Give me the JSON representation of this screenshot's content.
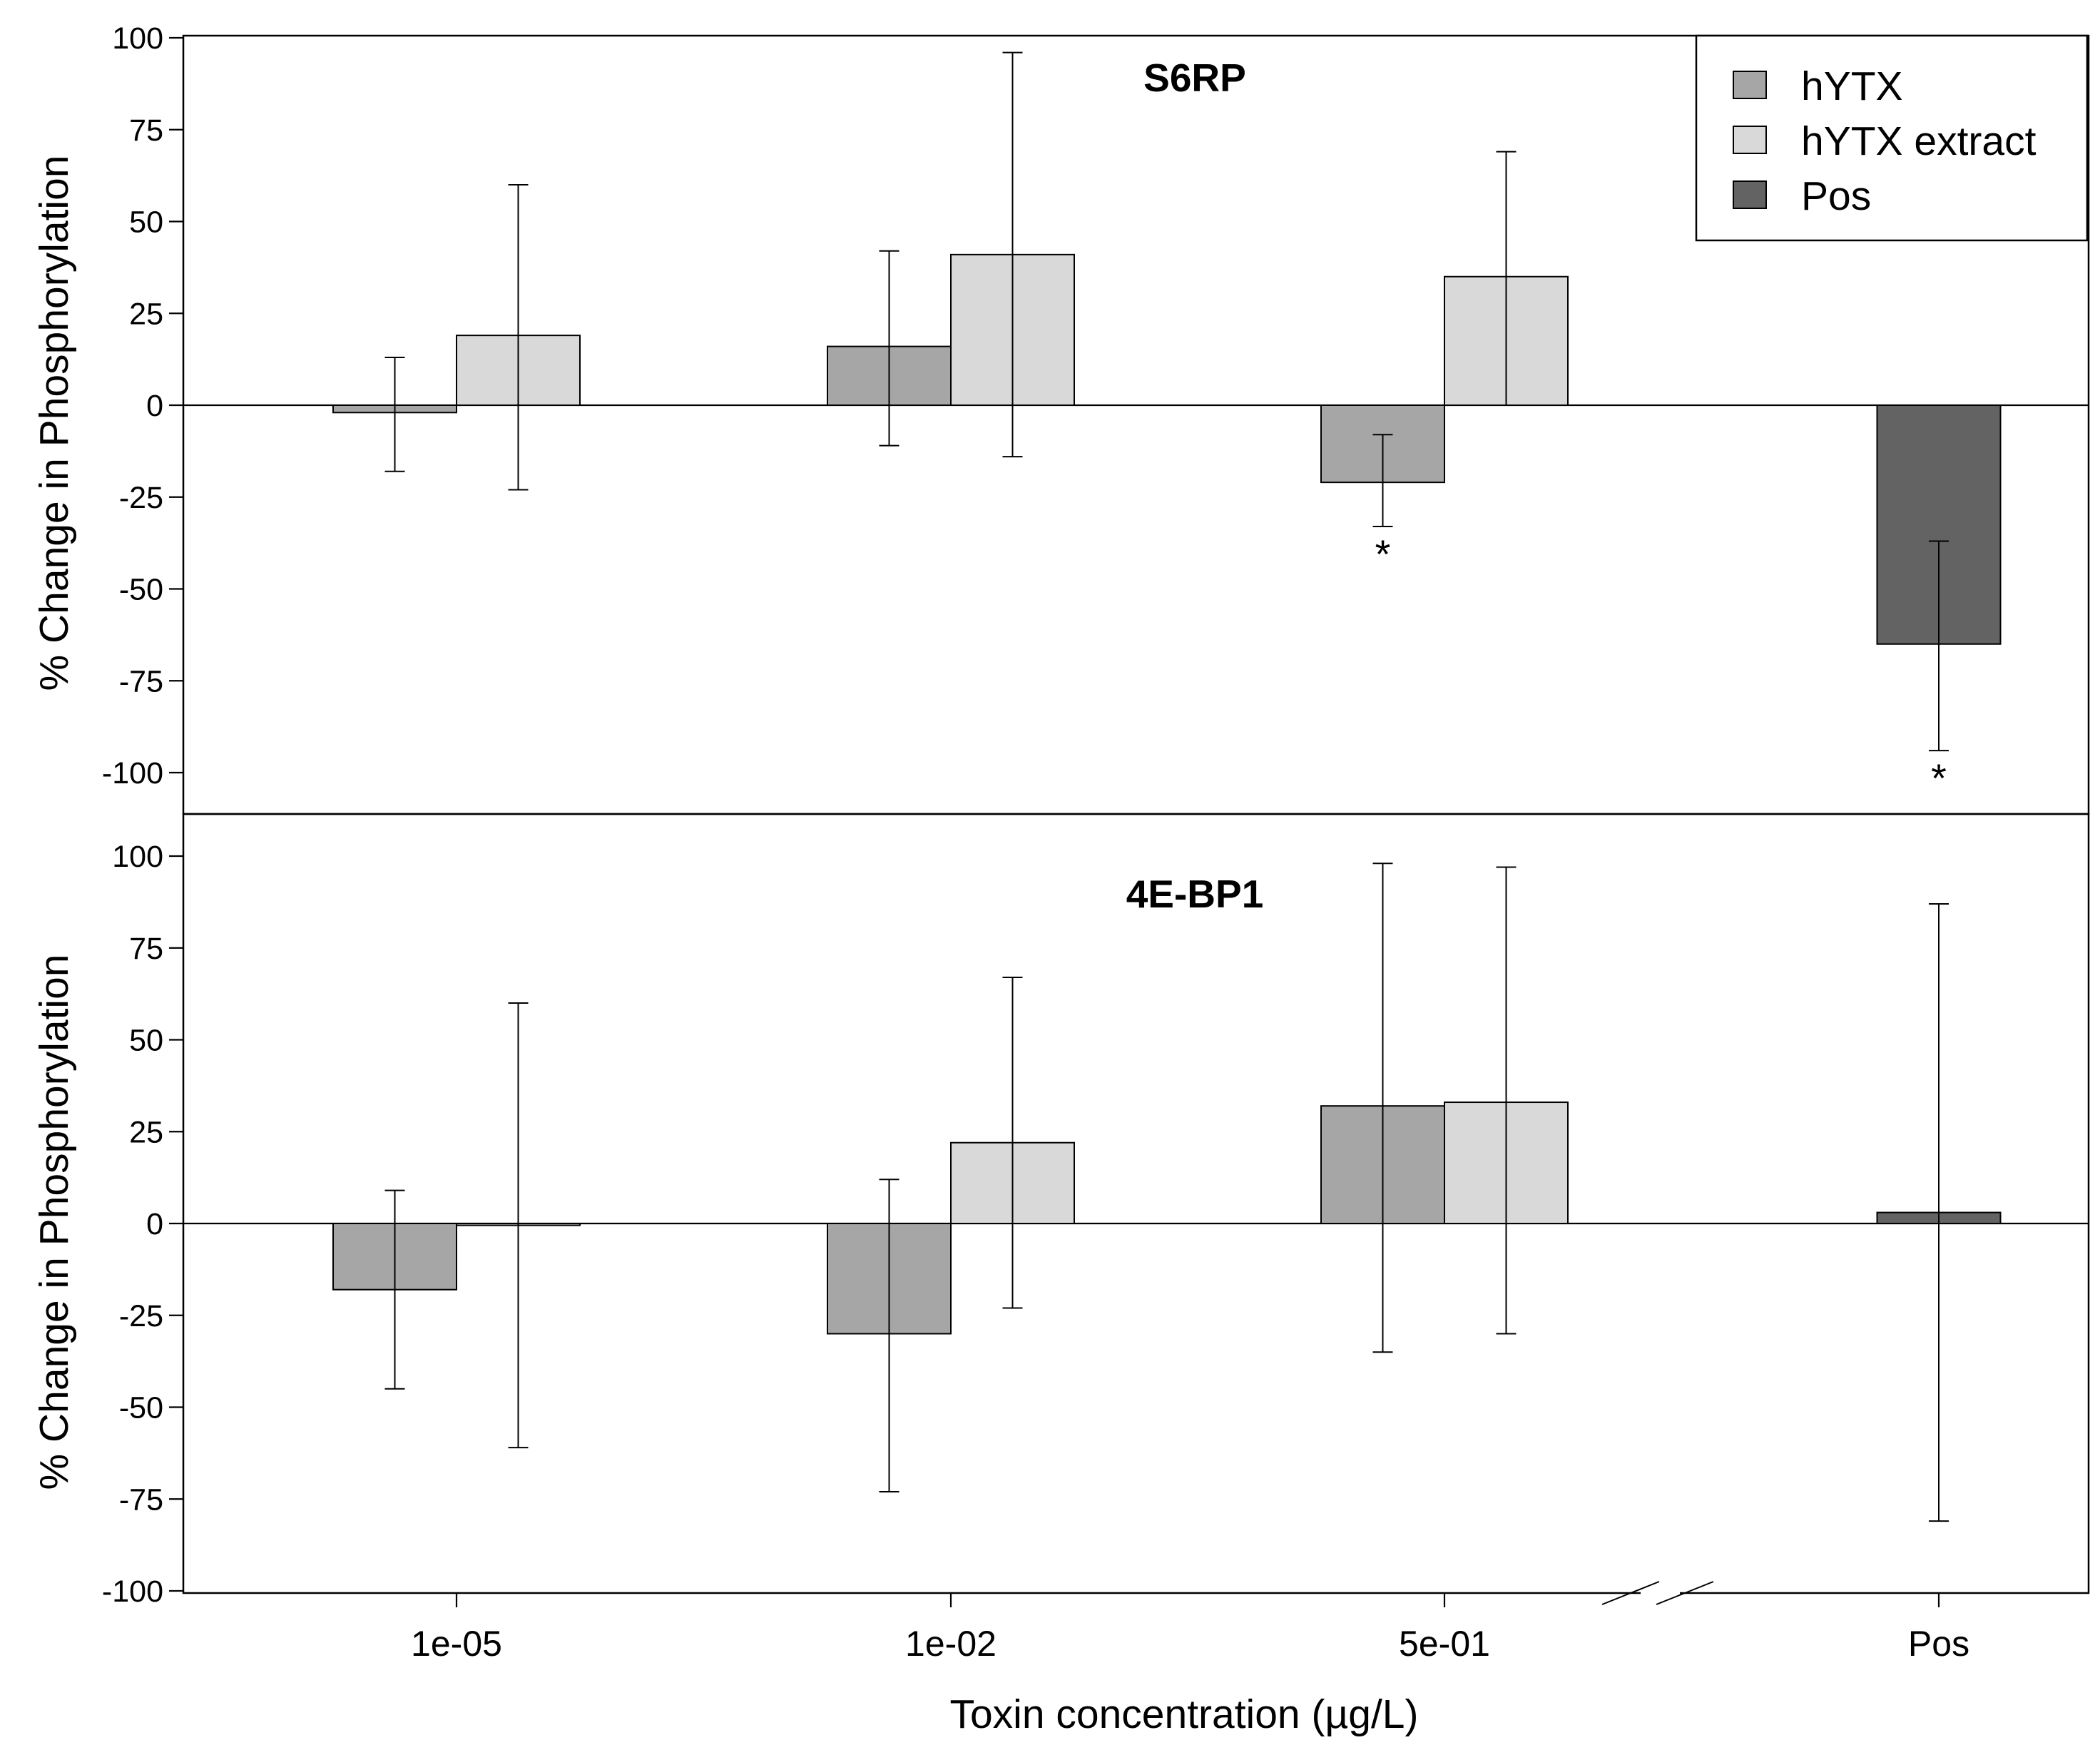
{
  "chart_data": {
    "type": "bar",
    "xlabel": "Toxin concentration (µg/L)",
    "ylabel": "% Change in Phosphorylation",
    "categories": [
      "1e-05",
      "1e-02",
      "5e-01",
      "Pos"
    ],
    "ylim": [
      -110,
      100
    ],
    "yticks": [
      100,
      75,
      50,
      25,
      0,
      -25,
      -50,
      -75,
      -100
    ],
    "legend": {
      "placement": "top-right",
      "entries": [
        {
          "label": "hYTX",
          "color": "#a6a6a6"
        },
        {
          "label": "hYTX extract",
          "color": "#d9d9d9"
        },
        {
          "label": "Pos",
          "color": "#636363"
        }
      ]
    },
    "series_colors": {
      "hYTX": "#a6a6a6",
      "hYTX extract": "#d9d9d9",
      "Pos": "#636363"
    },
    "axis_break": true,
    "panels": [
      {
        "title": "S6RP",
        "bars": [
          {
            "category": "1e-05",
            "series": "hYTX",
            "value": -2,
            "err_low": -18,
            "err_high": 13,
            "sig": ""
          },
          {
            "category": "1e-05",
            "series": "hYTX extract",
            "value": 19,
            "err_low": -23,
            "err_high": 60,
            "sig": ""
          },
          {
            "category": "1e-02",
            "series": "hYTX",
            "value": 16,
            "err_low": -11,
            "err_high": 42,
            "sig": ""
          },
          {
            "category": "1e-02",
            "series": "hYTX extract",
            "value": 41,
            "err_low": -14,
            "err_high": 96,
            "sig": ""
          },
          {
            "category": "5e-01",
            "series": "hYTX",
            "value": -21,
            "err_low": -33,
            "err_high": -8,
            "sig": "*"
          },
          {
            "category": "5e-01",
            "series": "hYTX extract",
            "value": 35,
            "err_low": 0,
            "err_high": 69,
            "sig": ""
          },
          {
            "category": "Pos",
            "series": "Pos",
            "value": -65,
            "err_low": -94,
            "err_high": -37,
            "sig": "*"
          }
        ]
      },
      {
        "title": "4E-BP1",
        "bars": [
          {
            "category": "1e-05",
            "series": "hYTX",
            "value": -18,
            "err_low": -45,
            "err_high": 9,
            "sig": ""
          },
          {
            "category": "1e-05",
            "series": "hYTX extract",
            "value": -0.5,
            "err_low": -61,
            "err_high": 60,
            "sig": ""
          },
          {
            "category": "1e-02",
            "series": "hYTX",
            "value": -30,
            "err_low": -73,
            "err_high": 12,
            "sig": ""
          },
          {
            "category": "1e-02",
            "series": "hYTX extract",
            "value": 22,
            "err_low": -23,
            "err_high": 67,
            "sig": ""
          },
          {
            "category": "5e-01",
            "series": "hYTX",
            "value": 32,
            "err_low": -35,
            "err_high": 98,
            "sig": ""
          },
          {
            "category": "5e-01",
            "series": "hYTX extract",
            "value": 33,
            "err_low": -30,
            "err_high": 97,
            "sig": ""
          },
          {
            "category": "Pos",
            "series": "Pos",
            "value": 3,
            "err_low": -81,
            "err_high": 87,
            "sig": ""
          }
        ]
      }
    ]
  }
}
